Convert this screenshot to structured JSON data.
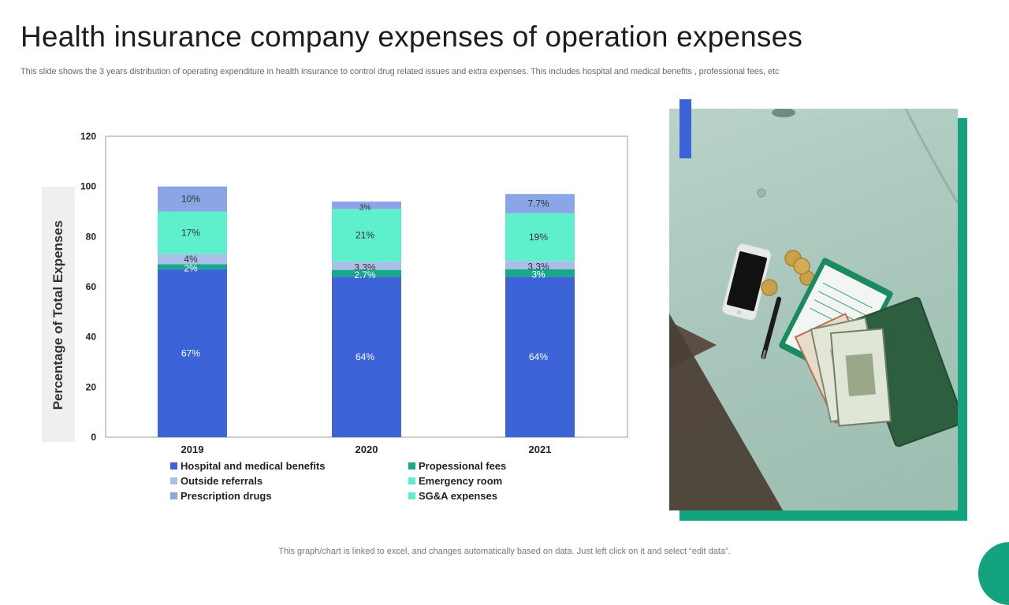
{
  "page": {
    "title": "Health insurance company expenses of operation expenses",
    "subtitle": "This slide shows the 3 years distribution of operating expenditure in health insurance to control drug related issues and extra expenses. This includes hospital and medical benefits , professional fees, etc",
    "footer": "This graph/chart is linked to excel,  and changes automatically based on data. Just left click on it and select “edit data”."
  },
  "colors": {
    "hospital": "#3c64d8",
    "professional": "#17a88a",
    "outside": "#a9bfe8",
    "emergency": "#5ef0cc",
    "prescription": "#8aa6e6",
    "accent_green": "#14a37f",
    "accent_blue": "#3c64d8"
  },
  "photo": {
    "icon": "money-phone-pen-photo"
  },
  "chart_data": {
    "type": "bar",
    "stacked": true,
    "title": "",
    "xlabel": "",
    "ylabel": "Percentage of Total Expenses",
    "ylim": [
      0,
      120
    ],
    "yticks": [
      0,
      20,
      40,
      60,
      80,
      100,
      120
    ],
    "categories": [
      "2019",
      "2020",
      "2021"
    ],
    "series": [
      {
        "name": "Hospital and medical benefits",
        "color_key": "hospital",
        "values": [
          67,
          64,
          64
        ],
        "labels": [
          "67%",
          "64%",
          "64%"
        ]
      },
      {
        "name": "Propessional fees",
        "color_key": "professional",
        "values": [
          2,
          2.7,
          3
        ],
        "labels": [
          "2%",
          "2.7%",
          "3%"
        ]
      },
      {
        "name": "Outside referrals",
        "color_key": "outside",
        "values": [
          4,
          3.3,
          3.3
        ],
        "labels": [
          "4%",
          "3.3%",
          "3.3%"
        ]
      },
      {
        "name": "Emergency room",
        "color_key": "emergency",
        "values": [
          17,
          21,
          19
        ],
        "labels": [
          "17%",
          "21%",
          "19%"
        ]
      },
      {
        "name": "Prescription drugs",
        "color_key": "prescription",
        "values": [
          10,
          3,
          7.7
        ],
        "labels": [
          "10%",
          "3%",
          "7.7%"
        ]
      }
    ],
    "legend": [
      {
        "name": "Hospital and medical benefits",
        "color_key": "hospital"
      },
      {
        "name": "Propessional fees",
        "color_key": "professional"
      },
      {
        "name": "Outside referrals",
        "color_key": "outside"
      },
      {
        "name": "Emergency room",
        "color_key": "emergency"
      },
      {
        "name": "Prescription drugs",
        "color_key": "prescription"
      },
      {
        "name": "SG&A expenses",
        "color_key": "emergency"
      }
    ],
    "legend_position": "bottom",
    "grid": false
  }
}
